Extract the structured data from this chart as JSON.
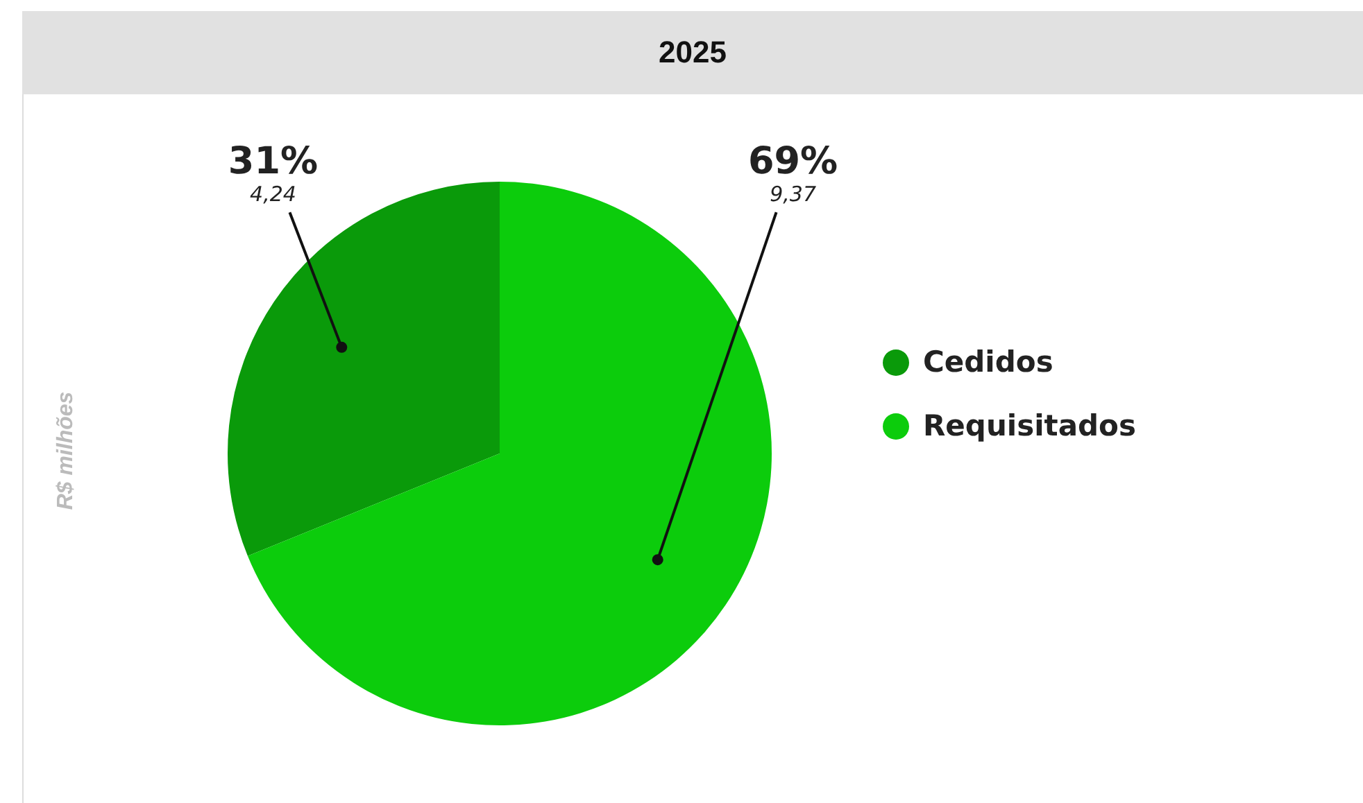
{
  "chart_data": {
    "type": "pie",
    "title": "2025",
    "ylabel": "R$ milhões",
    "categories": [
      "Cedidos",
      "Requisitados"
    ],
    "values": [
      4.24,
      9.37
    ],
    "colors": [
      "#0a9a0a",
      "#0ccc0c"
    ],
    "value_labels": [
      "31%\n4,24",
      "69%\n9,37"
    ],
    "legend": "right"
  }
}
